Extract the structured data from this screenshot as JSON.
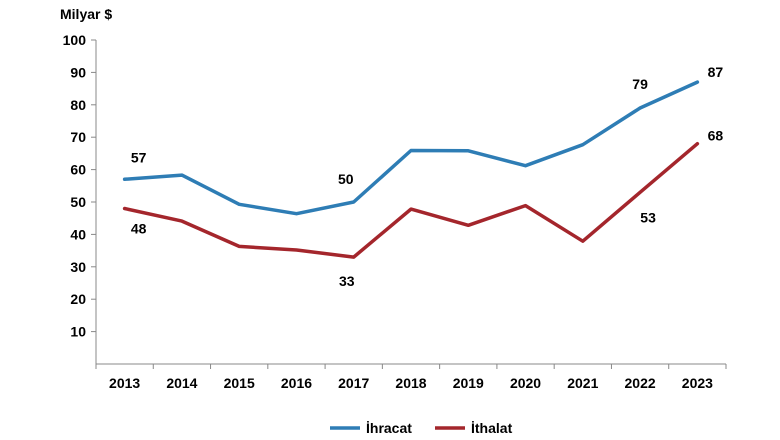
{
  "chart_data": {
    "type": "line",
    "ylabel": "Milyar $",
    "ylim": [
      0,
      100
    ],
    "yticks": [
      10,
      20,
      30,
      40,
      50,
      60,
      70,
      80,
      90,
      100
    ],
    "categories": [
      "2013",
      "2014",
      "2015",
      "2016",
      "2017",
      "2018",
      "2019",
      "2020",
      "2021",
      "2022",
      "2023"
    ],
    "grid": false,
    "legend_position": "bottom",
    "series": [
      {
        "name": "İhracat",
        "color": "#2E7DB5",
        "values": [
          57,
          58.3,
          49.3,
          46.4,
          50,
          65.9,
          65.8,
          61.2,
          67.7,
          79,
          87
        ],
        "labels": [
          {
            "index": 0,
            "text": "57"
          },
          {
            "index": 4,
            "text": "50"
          },
          {
            "index": 9,
            "text": "79"
          },
          {
            "index": 10,
            "text": "87"
          }
        ]
      },
      {
        "name": "İthalat",
        "color": "#A4262C",
        "values": [
          48,
          44.1,
          36.3,
          35.2,
          33,
          47.8,
          42.8,
          48.9,
          37.9,
          53,
          68
        ],
        "labels": [
          {
            "index": 0,
            "text": "48"
          },
          {
            "index": 4,
            "text": "33"
          },
          {
            "index": 9,
            "text": "53"
          },
          {
            "index": 10,
            "text": "68"
          }
        ]
      }
    ]
  }
}
